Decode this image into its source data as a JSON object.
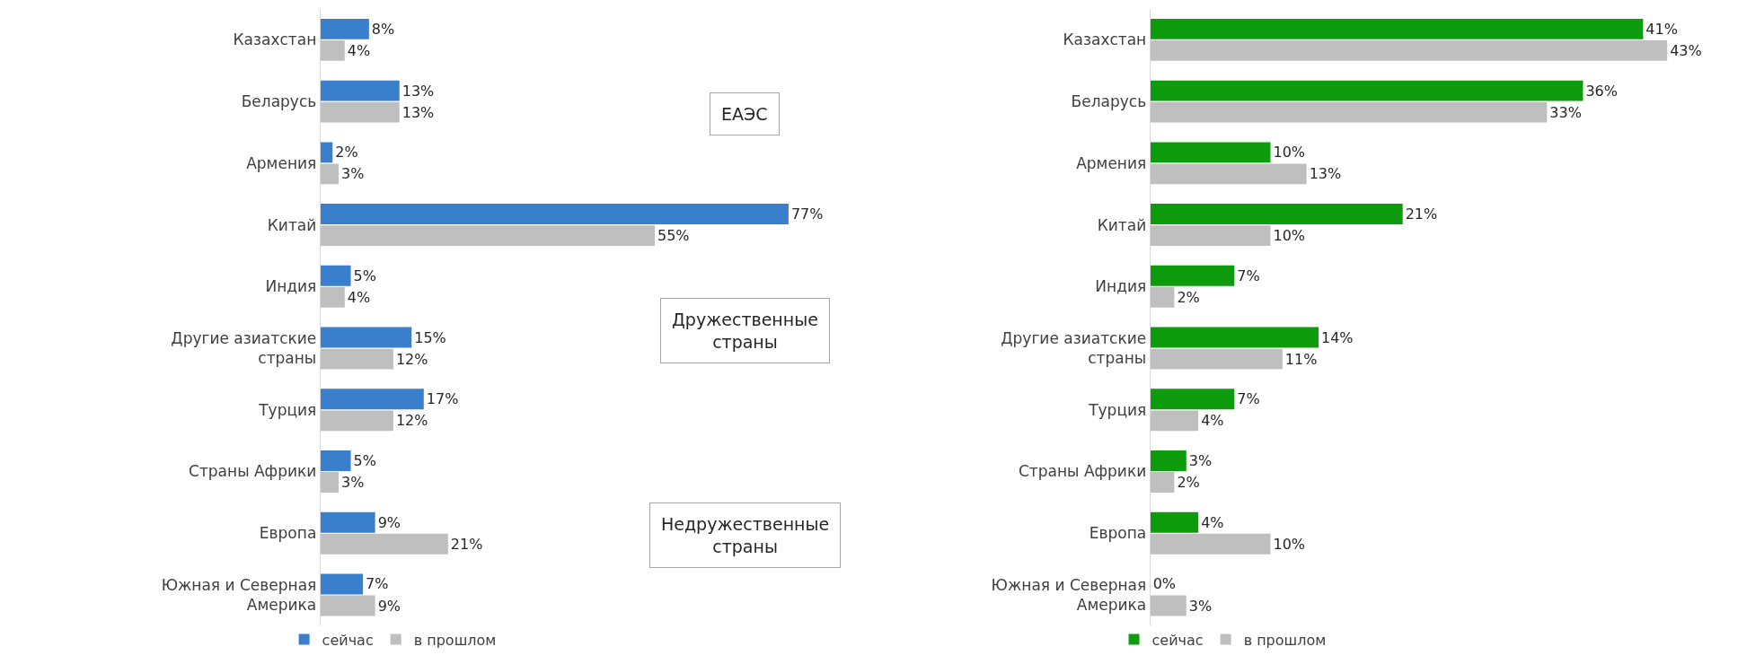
{
  "chart_data": [
    {
      "type": "bar",
      "orientation": "horizontal",
      "legend": "bottom",
      "tick_labels": "y",
      "categories": [
        "Казахстан",
        "Беларусь",
        "Армения",
        "Китай",
        "Индия",
        "Другие азиатские страны",
        "Турция",
        "Страны Африки",
        "Европа",
        "Южная и Северная Америка"
      ],
      "series": [
        {
          "name": "сейчас",
          "color": "#3a7fcc",
          "values": [
            8,
            13,
            2,
            77,
            5,
            15,
            17,
            5,
            9,
            7
          ],
          "value_labels": [
            "8%",
            "13%",
            "2%",
            "77%",
            "5%",
            "15%",
            "17%",
            "5%",
            "9%",
            "7%"
          ]
        },
        {
          "name": "в прошлом",
          "color": "#bfbfbf",
          "values": [
            4,
            13,
            3,
            55,
            4,
            12,
            12,
            3,
            21,
            9
          ],
          "value_labels": [
            "4%",
            "13%",
            "3%",
            "55%",
            "4%",
            "12%",
            "12%",
            "3%",
            "21%",
            "9%"
          ]
        }
      ],
      "annotations": [
        "ЕАЭС",
        "Дружественные страны",
        "Недружественные страны"
      ]
    },
    {
      "type": "bar",
      "orientation": "horizontal",
      "legend": "bottom",
      "tick_labels": "y",
      "categories": [
        "Казахстан",
        "Беларусь",
        "Армения",
        "Китай",
        "Индия",
        "Другие азиатские страны",
        "Турция",
        "Страны Африки",
        "Европа",
        "Южная и Северная Америка"
      ],
      "series": [
        {
          "name": "сейчас",
          "color": "#0e9c0e",
          "values": [
            41,
            36,
            10,
            21,
            7,
            14,
            7,
            3,
            4,
            0
          ],
          "value_labels": [
            "41%",
            "36%",
            "10%",
            "21%",
            "7%",
            "14%",
            "7%",
            "3%",
            "4%",
            "0%"
          ]
        },
        {
          "name": "в прошлом",
          "color": "#bfbfbf",
          "values": [
            43,
            33,
            13,
            10,
            2,
            11,
            4,
            2,
            10,
            3
          ],
          "value_labels": [
            "43%",
            "33%",
            "13%",
            "10%",
            "2%",
            "11%",
            "4%",
            "2%",
            "10%",
            "3%"
          ]
        }
      ]
    }
  ]
}
